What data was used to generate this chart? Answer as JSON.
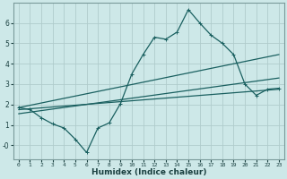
{
  "xlabel": "Humidex (Indice chaleur)",
  "background_color": "#cde8e8",
  "grid_color": "#b0cccc",
  "line_color": "#1a6060",
  "xlim": [
    -0.5,
    23.5
  ],
  "ylim": [
    -0.7,
    7.0
  ],
  "xticks": [
    0,
    1,
    2,
    3,
    4,
    5,
    6,
    7,
    8,
    9,
    10,
    11,
    12,
    13,
    14,
    15,
    16,
    17,
    18,
    19,
    20,
    21,
    22,
    23
  ],
  "yticks": [
    0,
    1,
    2,
    3,
    4,
    5,
    6
  ],
  "line1_x": [
    0,
    1,
    2,
    3,
    4,
    5,
    6,
    7,
    8,
    9,
    10,
    11,
    12,
    13,
    14,
    15,
    16,
    17,
    18,
    19,
    20,
    21,
    22,
    23
  ],
  "line1_y": [
    1.85,
    1.75,
    1.35,
    1.05,
    0.85,
    0.3,
    -0.35,
    0.85,
    1.1,
    2.05,
    3.5,
    4.45,
    5.3,
    5.2,
    5.55,
    6.65,
    6.0,
    5.4,
    5.0,
    4.45,
    3.0,
    2.45,
    2.75,
    2.8
  ],
  "line2_x": [
    0,
    23
  ],
  "line2_y": [
    1.85,
    4.45
  ],
  "line3_x": [
    0,
    23
  ],
  "line3_y": [
    1.75,
    2.75
  ],
  "line4_x": [
    0,
    23
  ],
  "line4_y": [
    1.55,
    3.3
  ]
}
